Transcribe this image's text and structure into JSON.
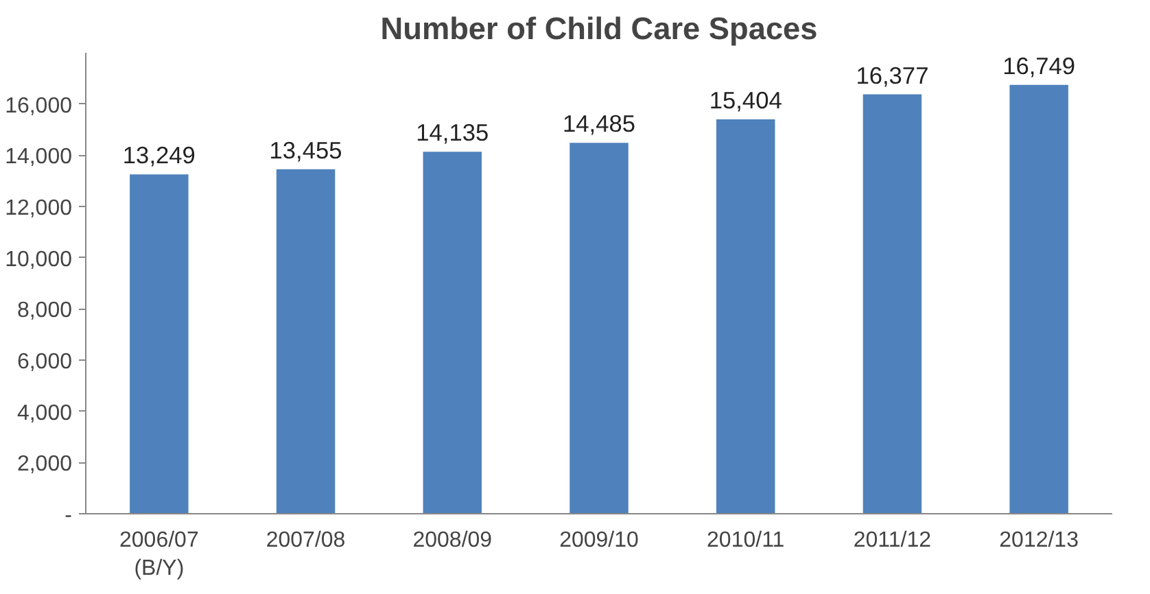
{
  "chart_data": {
    "type": "bar",
    "title": "Number of Child Care Spaces",
    "categories": [
      "2006/07\n(B/Y)",
      "2007/08",
      "2008/09",
      "2009/10",
      "2010/11",
      "2011/12",
      "2012/13"
    ],
    "values": [
      13249,
      13455,
      14135,
      14485,
      15404,
      16377,
      16749
    ],
    "value_labels": [
      "13,249",
      "13,455",
      "14,135",
      "14,485",
      "15,404",
      "16,377",
      "16,749"
    ],
    "color": "#4f81bd",
    "grid": false,
    "legend": false,
    "ylim": [
      0,
      18000
    ],
    "yticks": [
      {
        "value": 0,
        "label": "-"
      },
      {
        "value": 2000,
        "label": "2,000"
      },
      {
        "value": 4000,
        "label": "4,000"
      },
      {
        "value": 6000,
        "label": "6,000"
      },
      {
        "value": 8000,
        "label": "8,000"
      },
      {
        "value": 10000,
        "label": "10,000"
      },
      {
        "value": 12000,
        "label": "12,000"
      },
      {
        "value": 14000,
        "label": "14,000"
      },
      {
        "value": 16000,
        "label": "16,000"
      }
    ]
  }
}
